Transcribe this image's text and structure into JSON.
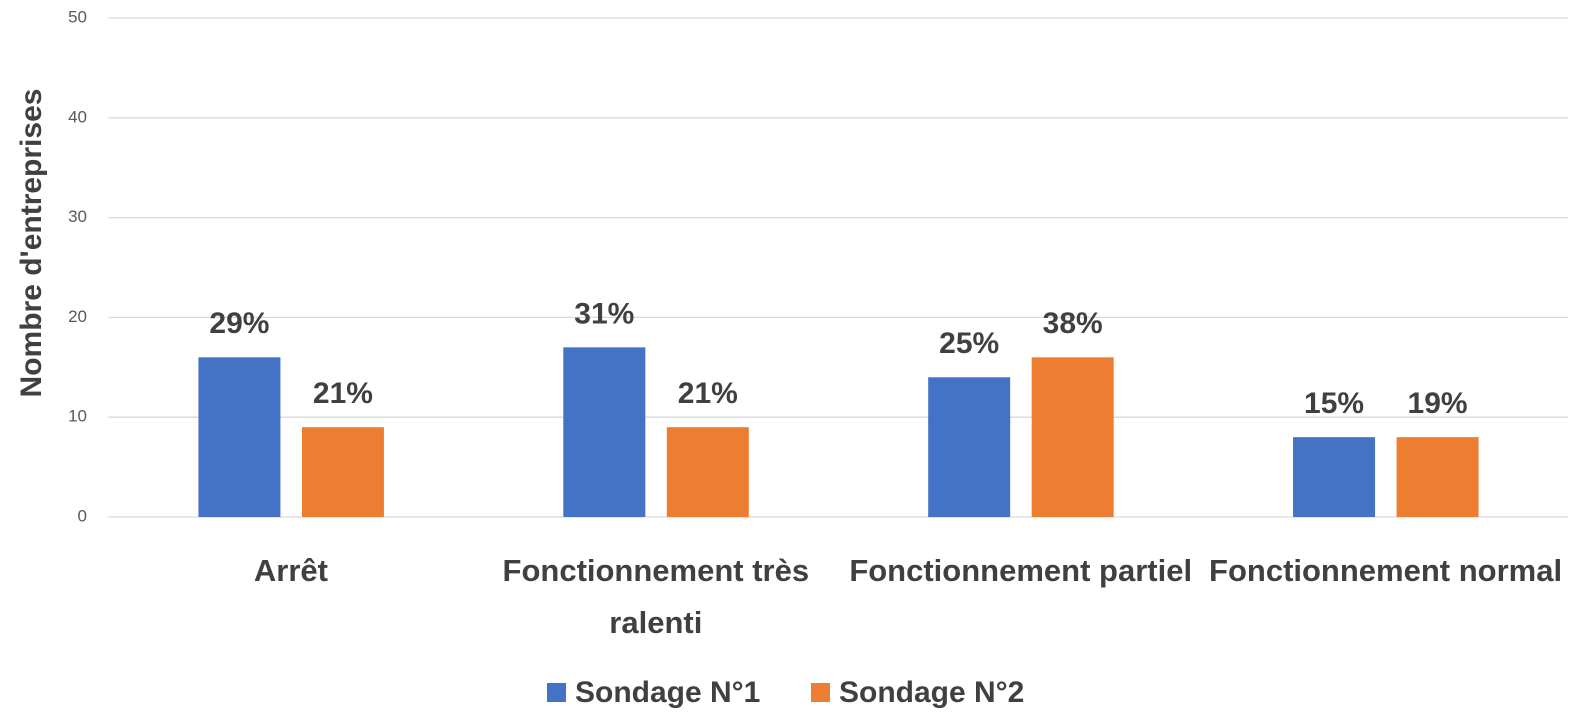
{
  "chart_data": {
    "type": "bar",
    "y_label": "Nombre d'entreprises",
    "categories": [
      "Arrêt",
      "Fonctionnement très ralenti",
      "Fonctionnement partiel",
      "Fonctionnement normal"
    ],
    "series": [
      {
        "name": "Sondage N°1",
        "color": "#4472c4",
        "values": [
          16,
          17,
          14,
          8
        ],
        "data_labels": [
          "29%",
          "31%",
          "25%",
          "15%"
        ]
      },
      {
        "name": "Sondage N°2",
        "color": "#ed7d31",
        "values": [
          9,
          9,
          16,
          8
        ],
        "data_labels": [
          "21%",
          "21%",
          "38%",
          "19%"
        ]
      }
    ],
    "ylim": [
      0,
      50
    ],
    "yticks": [
      0,
      10,
      20,
      30,
      40,
      50
    ],
    "grid": true,
    "legend": "bottom"
  }
}
